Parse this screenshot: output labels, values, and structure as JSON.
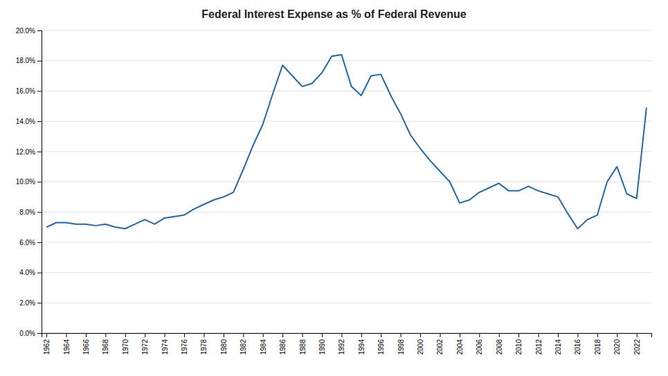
{
  "chart_data": {
    "type": "line",
    "title": "Federal Interest Expense as % of Federal Revenue",
    "x": [
      1962,
      1963,
      1964,
      1965,
      1966,
      1967,
      1968,
      1969,
      1970,
      1971,
      1972,
      1973,
      1974,
      1975,
      1976,
      1977,
      1978,
      1979,
      1980,
      1981,
      1982,
      1983,
      1984,
      1985,
      1986,
      1987,
      1988,
      1989,
      1990,
      1991,
      1992,
      1993,
      1994,
      1995,
      1996,
      1997,
      1998,
      1999,
      2000,
      2001,
      2002,
      2003,
      2004,
      2005,
      2006,
      2007,
      2008,
      2009,
      2010,
      2011,
      2012,
      2013,
      2014,
      2015,
      2016,
      2017,
      2018,
      2019,
      2020,
      2021,
      2022,
      2023
    ],
    "values": [
      0.07,
      0.073,
      0.073,
      0.072,
      0.072,
      0.071,
      0.072,
      0.07,
      0.069,
      0.072,
      0.075,
      0.072,
      0.076,
      0.077,
      0.078,
      0.082,
      0.085,
      0.088,
      0.09,
      0.093,
      0.108,
      0.124,
      0.138,
      0.158,
      0.177,
      0.17,
      0.163,
      0.165,
      0.172,
      0.183,
      0.184,
      0.163,
      0.157,
      0.17,
      0.171,
      0.157,
      0.145,
      0.131,
      0.122,
      0.114,
      0.107,
      0.1,
      0.086,
      0.088,
      0.093,
      0.096,
      0.099,
      0.094,
      0.094,
      0.097,
      0.094,
      0.092,
      0.09,
      0.079,
      0.069,
      0.075,
      0.078,
      0.1,
      0.11,
      0.092,
      0.089,
      0.149
    ],
    "color": "#2366a8",
    "xlim": [
      1961.5,
      2023.5
    ],
    "xticks": [
      1962,
      1964,
      1966,
      1968,
      1970,
      1972,
      1974,
      1976,
      1978,
      1980,
      1982,
      1984,
      1986,
      1988,
      1990,
      1992,
      1994,
      1996,
      1998,
      2000,
      2002,
      2004,
      2006,
      2008,
      2010,
      2012,
      2014,
      2016,
      2018,
      2020,
      2022
    ],
    "ylim": [
      0.0,
      0.2
    ],
    "yticks": [
      {
        "value": 0.0,
        "label": "0.0%"
      },
      {
        "value": 0.02,
        "label": "2.0%"
      },
      {
        "value": 0.04,
        "label": "4.0%"
      },
      {
        "value": 0.06,
        "label": "6.0%"
      },
      {
        "value": 0.08,
        "label": "8.0%"
      },
      {
        "value": 0.1,
        "label": "10.0%"
      },
      {
        "value": 0.12,
        "label": "12.0%"
      },
      {
        "value": 0.14,
        "label": "14.0%"
      },
      {
        "value": 0.16,
        "label": "16.0%"
      },
      {
        "value": 0.18,
        "label": "18.0%"
      },
      {
        "value": 0.2,
        "label": "20.0%"
      }
    ],
    "grid": "y"
  }
}
